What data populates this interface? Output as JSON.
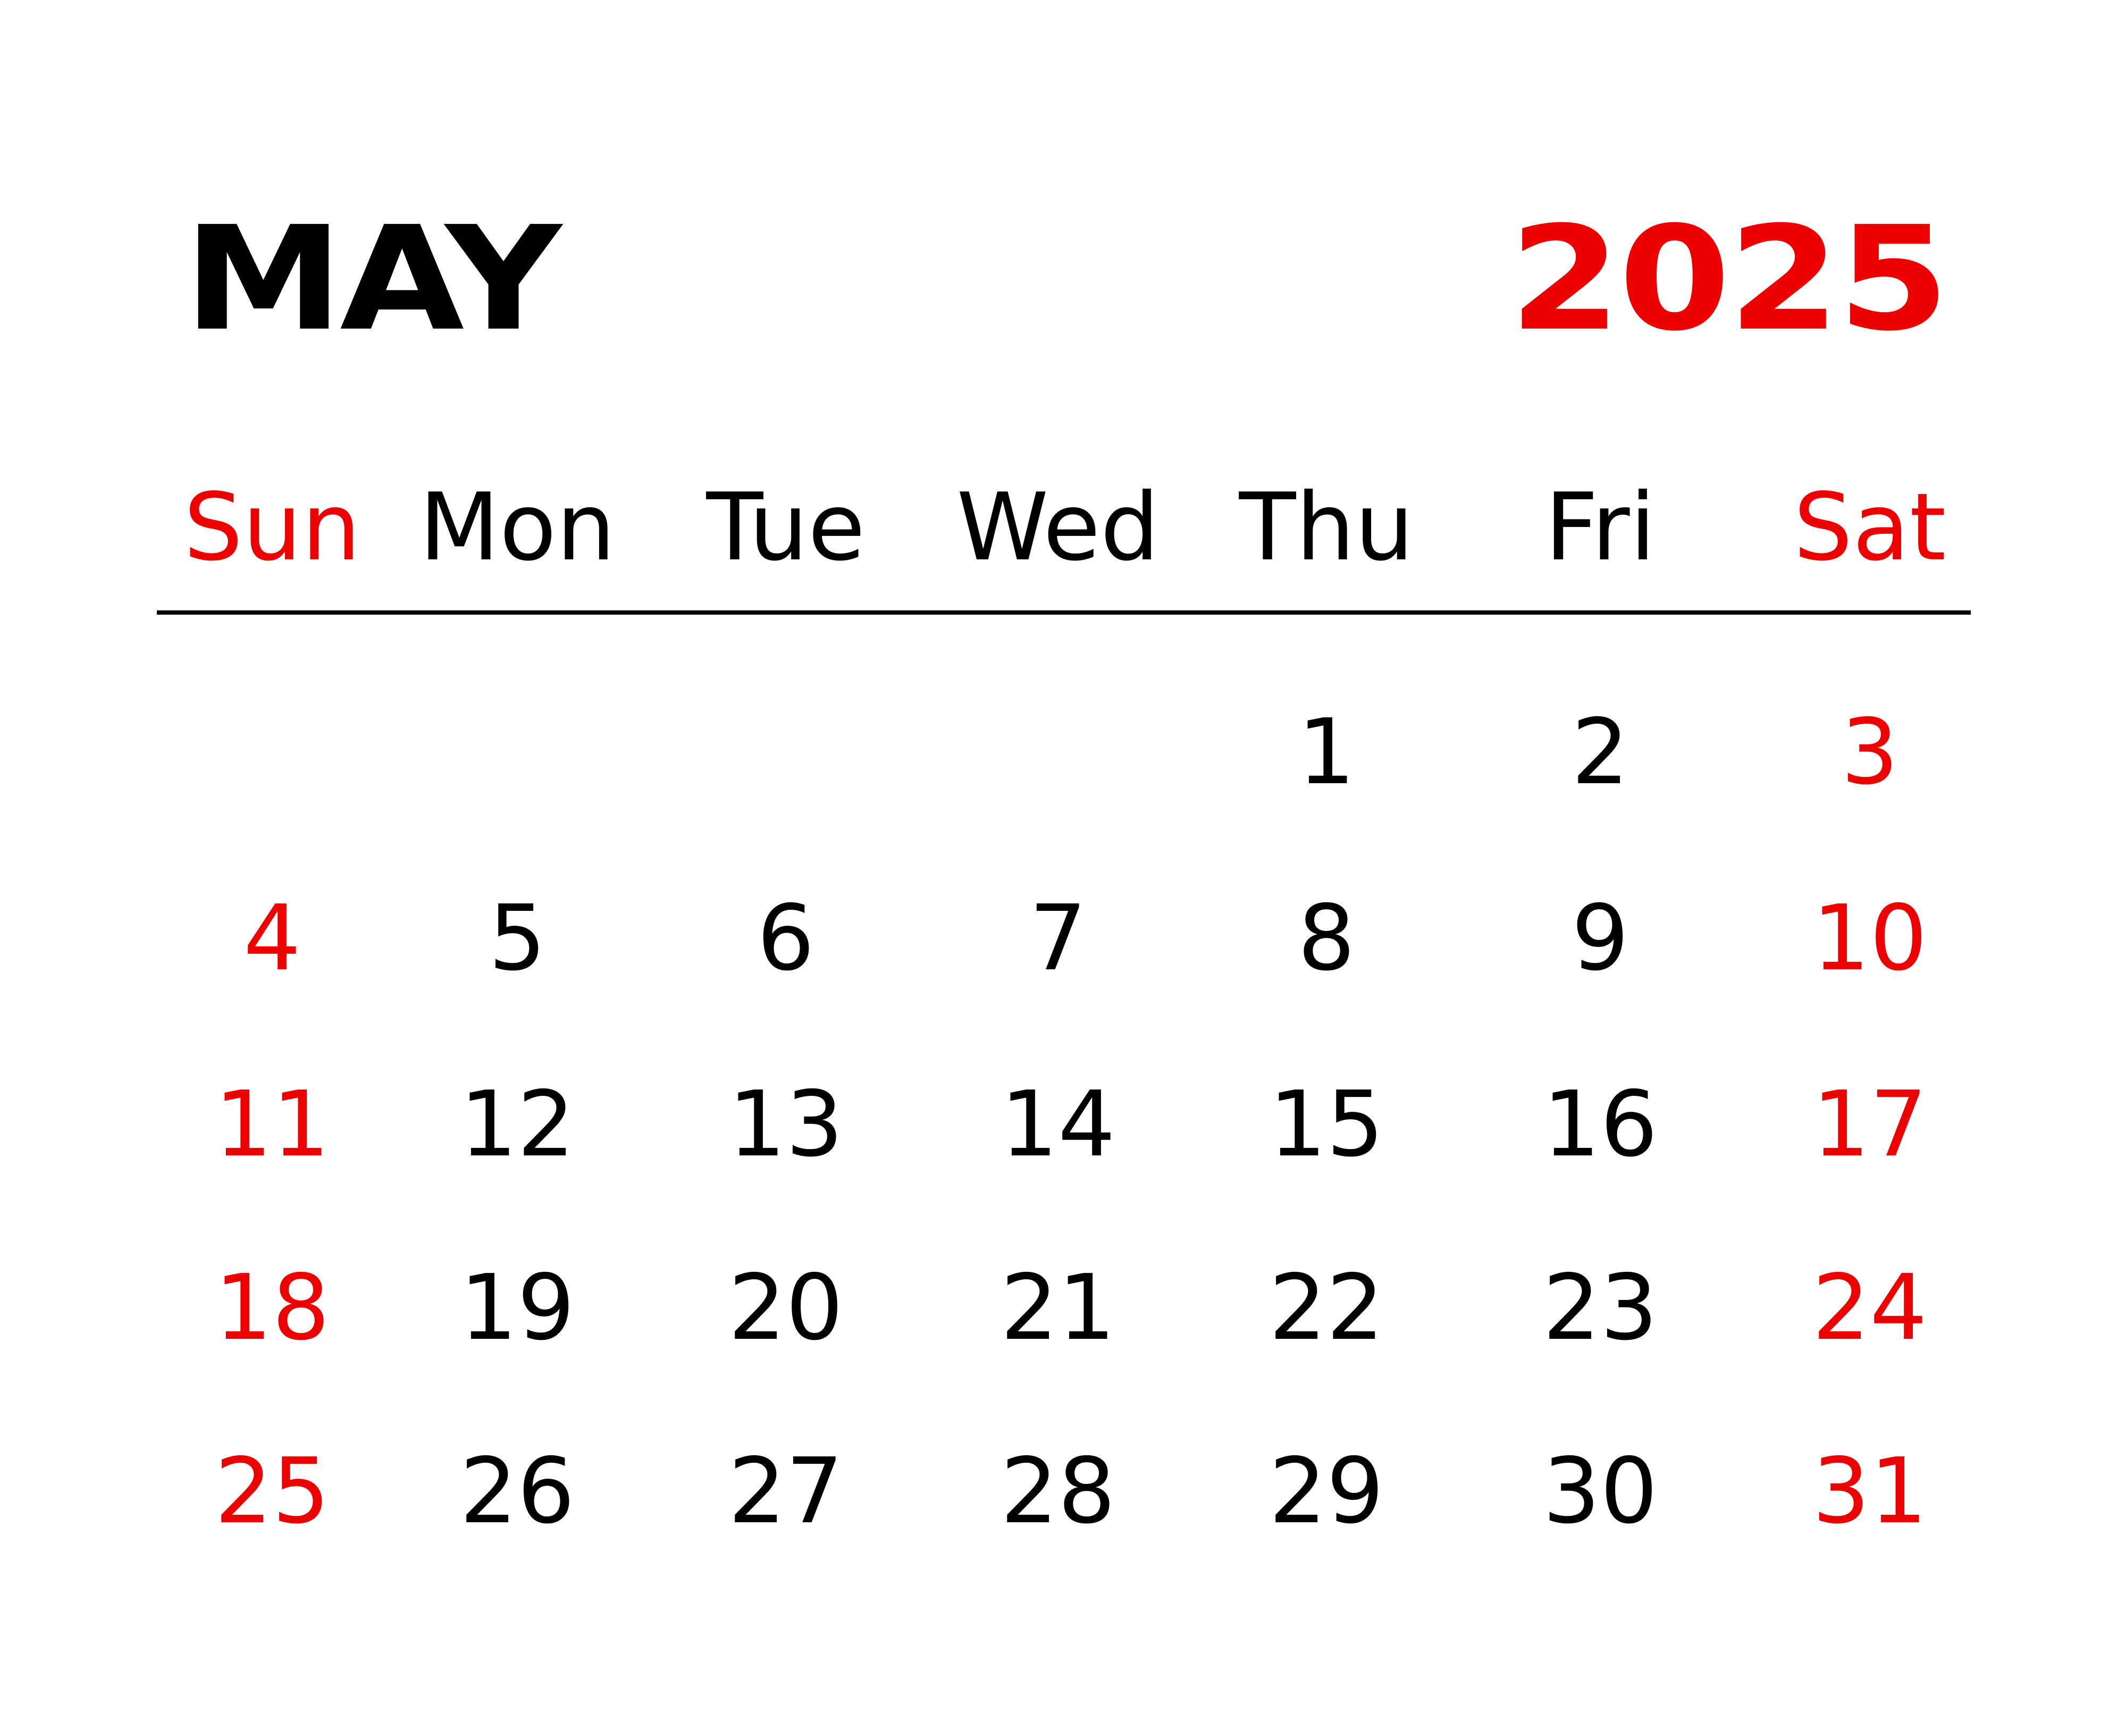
{
  "calendar": {
    "month": "MAY",
    "year": "2025",
    "weekdays": [
      "Sun",
      "Mon",
      "Tue",
      "Wed",
      "Thu",
      "Fri",
      "Sat"
    ],
    "weekend_color": "#ee0000",
    "text_color": "#000000",
    "first_weekday_index": 4,
    "days_in_month": 31,
    "weeks": [
      [
        "",
        "",
        "",
        "",
        "1",
        "2",
        "3"
      ],
      [
        "4",
        "5",
        "6",
        "7",
        "8",
        "9",
        "10"
      ],
      [
        "11",
        "12",
        "13",
        "14",
        "15",
        "16",
        "17"
      ],
      [
        "18",
        "19",
        "20",
        "21",
        "22",
        "23",
        "24"
      ],
      [
        "25",
        "26",
        "27",
        "28",
        "29",
        "30",
        "31"
      ]
    ]
  }
}
